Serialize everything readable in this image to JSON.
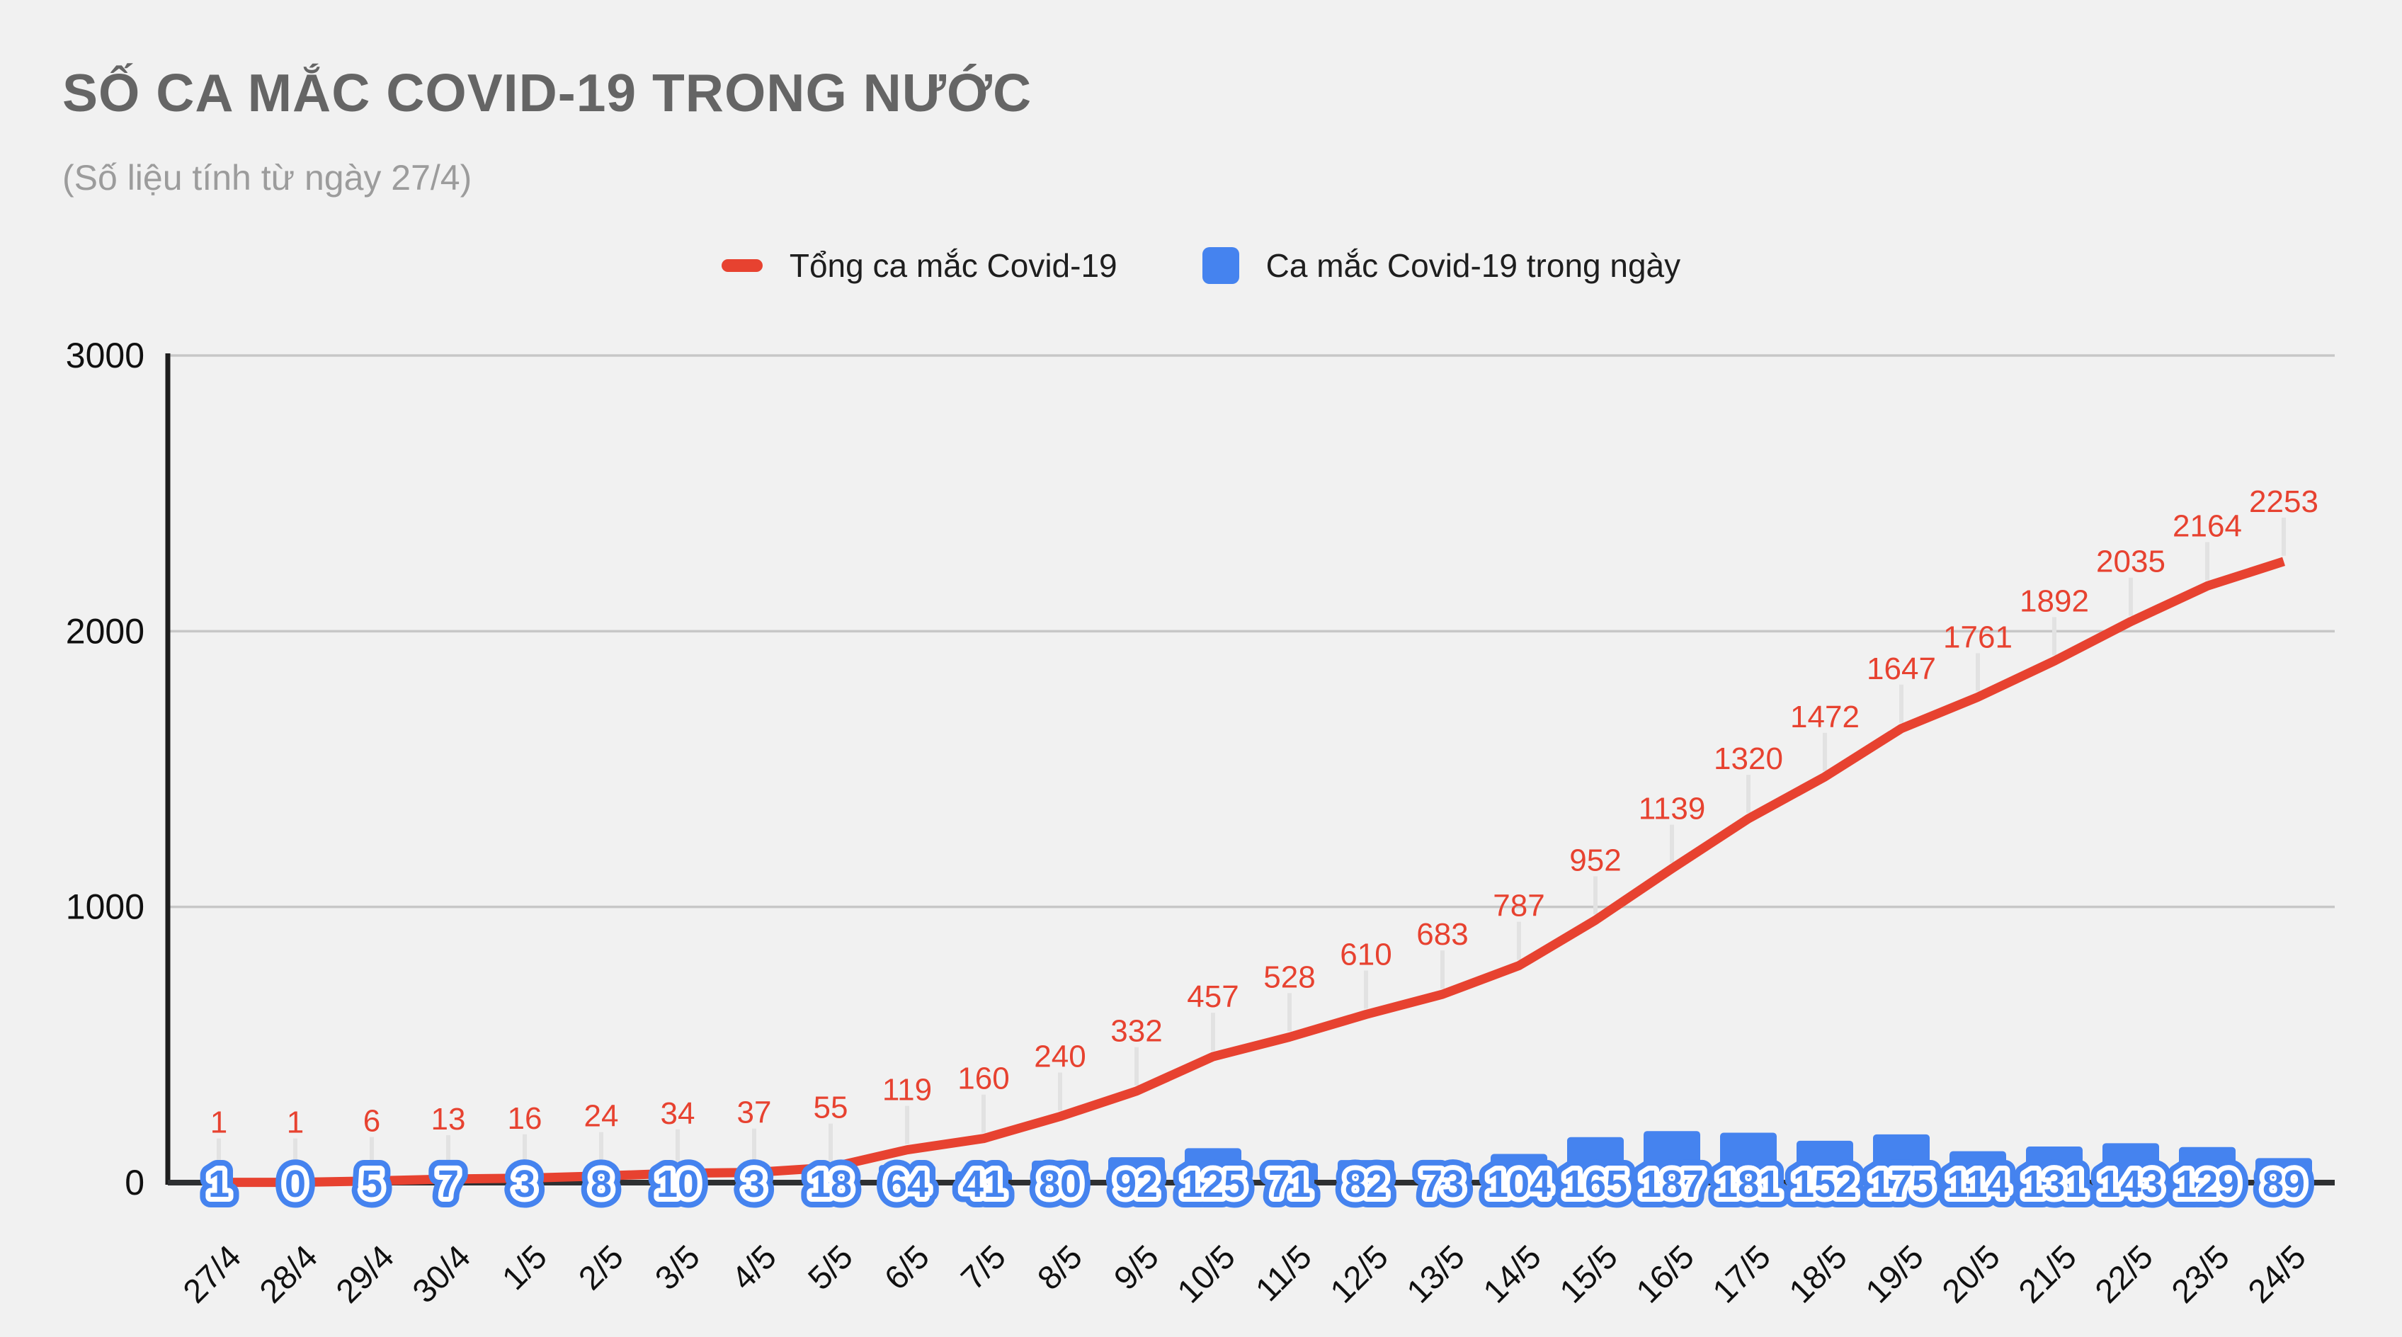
{
  "header": {
    "title": "SỐ CA MẮC COVID-19 TRONG NƯỚC",
    "subtitle": "(Số liệu tính từ ngày 27/4)"
  },
  "legend": {
    "items": [
      {
        "label": "Tổng ca mắc Covid-19",
        "shape": "line-dash",
        "color": "#e74230"
      },
      {
        "label": "Ca mắc Covid-19 trong ngày",
        "shape": "column",
        "color": "#4583ef"
      }
    ]
  },
  "chart_data": {
    "type": "combo",
    "categories": [
      "27/4",
      "28/4",
      "29/4",
      "30/4",
      "1/5",
      "2/5",
      "3/5",
      "4/5",
      "5/5",
      "6/5",
      "7/5",
      "8/5",
      "9/5",
      "10/5",
      "11/5",
      "12/5",
      "13/5",
      "14/5",
      "15/5",
      "16/5",
      "17/5",
      "18/5",
      "19/5",
      "20/5",
      "21/5",
      "22/5",
      "23/5",
      "24/5"
    ],
    "series": [
      {
        "name": "Tổng ca mắc Covid-19",
        "type": "line",
        "color": "#e74230",
        "values": [
          1,
          1,
          6,
          13,
          16,
          24,
          34,
          37,
          55,
          119,
          160,
          240,
          332,
          457,
          528,
          610,
          683,
          787,
          952,
          1139,
          1320,
          1472,
          1647,
          1761,
          1892,
          2035,
          2164,
          2253
        ]
      },
      {
        "name": "Ca mắc Covid-19 trong ngày",
        "type": "bar",
        "color": "#4583ef",
        "values": [
          1,
          0,
          5,
          7,
          3,
          8,
          10,
          3,
          18,
          64,
          41,
          80,
          92,
          125,
          71,
          82,
          73,
          104,
          165,
          187,
          181,
          152,
          175,
          114,
          131,
          143,
          129,
          89
        ]
      }
    ],
    "ylim": [
      0,
      3000
    ],
    "y_ticks": [
      0,
      1000,
      2000,
      3000
    ],
    "grid": "horizontal",
    "legend_position": "top",
    "colors": {
      "background": "#f1f1f1",
      "grid": "#c7c7c7",
      "baseline": "#2e3032",
      "y_axis": "#1d1d1d",
      "leader": "#e2e2e2",
      "label_halo": "#ffffff"
    }
  }
}
